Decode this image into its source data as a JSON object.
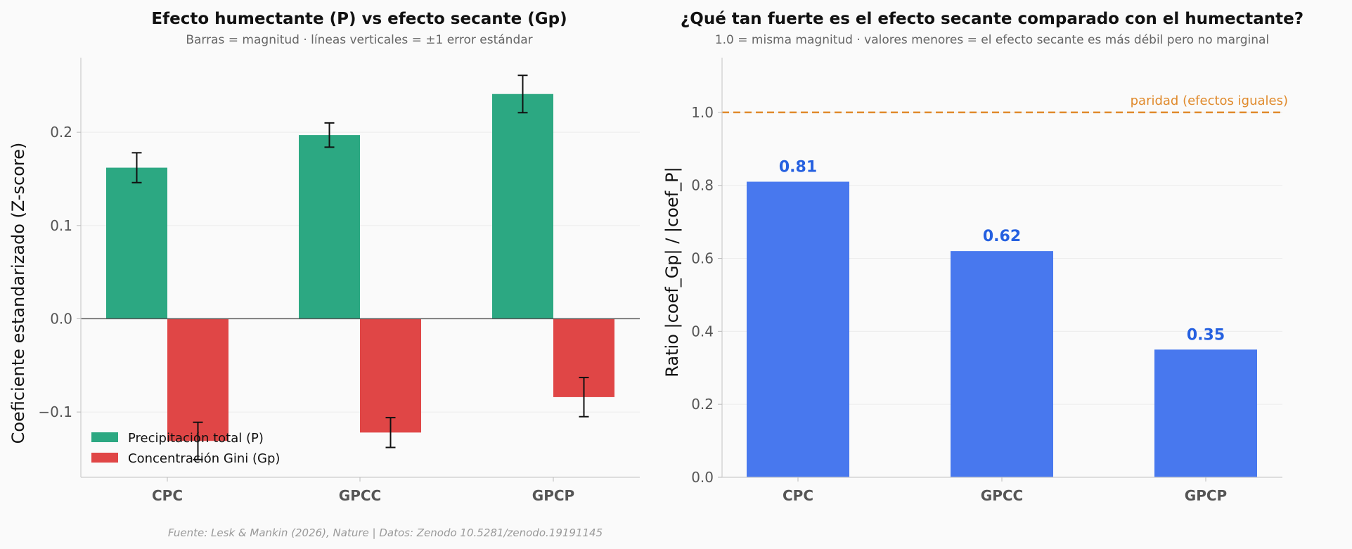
{
  "footnote": "Fuente: Lesk & Mankin (2026), Nature | Datos: Zenodo 10.5281/zenodo.19191145",
  "colors": {
    "precip": "#2ca882",
    "gini": "#e04646",
    "ratio": "#4878ee",
    "ratio_label": "#2560e0",
    "parity": "#e08a2c"
  },
  "chart_data": [
    {
      "type": "bar",
      "title": "Efecto humectante (P) vs efecto secante (Gp)",
      "subtitle": "Barras = magnitud · líneas verticales = ±1 error estándar",
      "xlabel": "",
      "ylabel": "Coeficiente estandarizado (Z-score)",
      "ylim": [
        -0.17,
        0.28
      ],
      "yticks": [
        -0.1,
        0.0,
        0.1,
        0.2
      ],
      "ytick_labels": [
        "−0.1",
        "0.0",
        "0.1",
        "0.2"
      ],
      "categories": [
        "CPC",
        "GPCC",
        "GPCP"
      ],
      "series": [
        {
          "name": "Precipitación total (P)",
          "values": [
            0.162,
            0.197,
            0.241
          ],
          "errors": [
            0.016,
            0.013,
            0.02
          ]
        },
        {
          "name": "Concentración Gini (Gp)",
          "values": [
            -0.131,
            -0.122,
            -0.084
          ],
          "errors": [
            0.02,
            0.016,
            0.021
          ]
        }
      ],
      "legend_position": "lower-left",
      "grid": true
    },
    {
      "type": "bar",
      "title": "¿Qué tan fuerte es el efecto secante comparado con el humectante?",
      "subtitle": "1.0 = misma magnitud · valores menores = el efecto secante es más débil pero no marginal",
      "xlabel": "",
      "ylabel": "Ratio |coef_Gp| / |coef_P|",
      "ylim": [
        0,
        1.15
      ],
      "yticks": [
        0.0,
        0.2,
        0.4,
        0.6,
        0.8,
        1.0
      ],
      "ytick_labels": [
        "0.0",
        "0.2",
        "0.4",
        "0.6",
        "0.8",
        "1.0"
      ],
      "categories": [
        "CPC",
        "GPCC",
        "GPCP"
      ],
      "values": [
        0.81,
        0.62,
        0.35
      ],
      "value_labels": [
        "0.81",
        "0.62",
        "0.35"
      ],
      "reference_line": {
        "value": 1.0,
        "label": "paridad (efectos iguales)"
      },
      "grid": true
    }
  ]
}
